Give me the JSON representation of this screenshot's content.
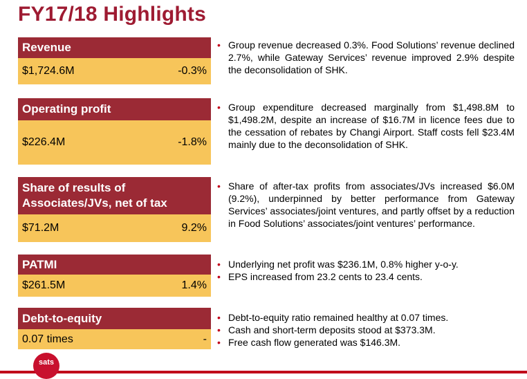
{
  "title": "FY17/18 Highlights",
  "accent": "#9b2a35",
  "value_bg": "#f7c55a",
  "cards": [
    {
      "label": "Revenue",
      "value": "$1,724.6M",
      "change": "-0.3%"
    },
    {
      "label": "Operating profit",
      "value": "$226.4M",
      "change": "-1.8%"
    },
    {
      "label": "Share of results of Associates/JVs, net of tax",
      "value": "$71.2M",
      "change": "9.2%"
    },
    {
      "label": "PATMI",
      "value": "$261.5M",
      "change": "1.4%"
    },
    {
      "label": "Debt-to-equity",
      "value": "0.07 times",
      "change": "-"
    }
  ],
  "bullet_groups": [
    [
      "Group revenue decreased 0.3%. Food Solutions’ revenue declined 2.7%, while Gateway Services’ revenue improved 2.9% despite the deconsolidation of SHK."
    ],
    [
      "Group expenditure decreased marginally from $1,498.8M to $1,498.2M, despite an increase of $16.7M in licence fees due to the cessation of rebates by Changi Airport. Staff costs fell $23.4M mainly due to the deconsolidation of SHK."
    ],
    [
      "Share of after-tax profits from associates/JVs increased $6.0M (9.2%), underpinned by better performance from Gateway Services’ associates/joint ventures, and partly offset by a reduction in Food Solutions’ associates/joint ventures’ performance."
    ],
    [
      "Underlying net profit was $236.1M, 0.8% higher y-o-y.",
      "EPS increased from 23.2 cents to 23.4 cents."
    ],
    [
      "Debt-to-equity ratio remained healthy at 0.07 times.",
      "Cash and short-term deposits stood at $373.3M.",
      "Free cash flow generated was $146.3M."
    ]
  ],
  "bullet_char": "•",
  "logo_text": "sats"
}
